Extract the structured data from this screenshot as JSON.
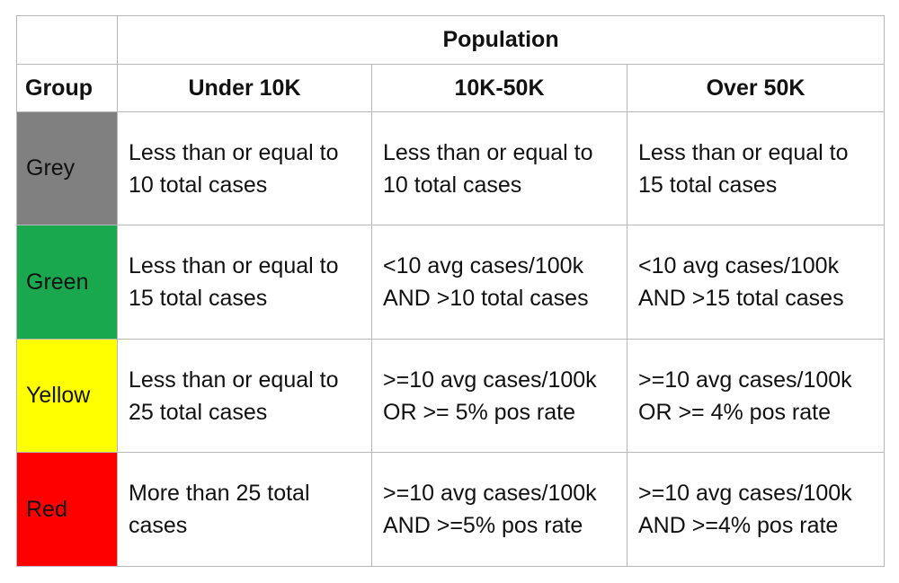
{
  "header": {
    "population_label": "Population",
    "group_label": "Group",
    "columns": [
      "Under 10K",
      "10K-50K",
      "Over 50K"
    ]
  },
  "rows": [
    {
      "group": "Grey",
      "color": "#808080",
      "cells": [
        [
          "Less than or equal to",
          "10 total cases"
        ],
        [
          "Less than or equal to",
          "10 total cases"
        ],
        [
          "Less than or equal to",
          "15 total cases"
        ]
      ]
    },
    {
      "group": "Green",
      "color": "#1aa84f",
      "cells": [
        [
          "Less than or equal to",
          "15 total cases"
        ],
        [
          "<10 avg cases/100k",
          "AND >10 total cases"
        ],
        [
          "<10 avg cases/100k",
          "AND >15 total cases"
        ]
      ]
    },
    {
      "group": "Yellow",
      "color": "#ffff00",
      "cells": [
        [
          "Less than or equal to",
          "25 total cases"
        ],
        [
          ">=10 avg cases/100k",
          "OR >= 5% pos rate"
        ],
        [
          ">=10 avg cases/100k",
          "OR >= 4% pos rate"
        ]
      ]
    },
    {
      "group": "Red",
      "color": "#ff0000",
      "cells": [
        [
          "More than 25 total",
          "cases"
        ],
        [
          ">=10 avg cases/100k",
          "AND >=5% pos rate"
        ],
        [
          ">=10 avg cases/100k",
          "AND >=4% pos rate"
        ]
      ]
    }
  ]
}
